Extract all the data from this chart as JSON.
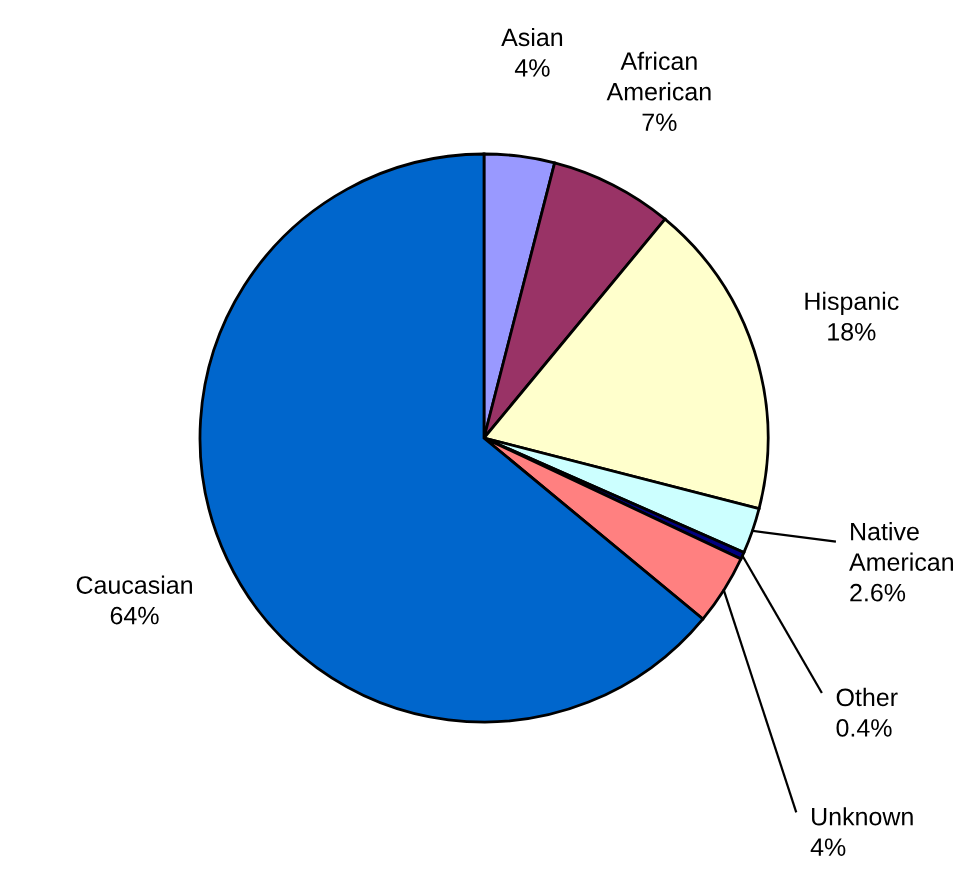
{
  "chart_data": {
    "type": "pie",
    "categories": [
      "Asian",
      "African American",
      "Hispanic",
      "Native American",
      "Other",
      "Unknown",
      "Caucasian"
    ],
    "values": [
      4,
      7,
      18,
      2.6,
      0.4,
      4,
      64
    ],
    "value_labels": [
      "4%",
      "7%",
      "18%",
      "2.6%",
      "0.4%",
      "4%",
      "64%"
    ],
    "colors": [
      "#9999ff",
      "#993366",
      "#ffffcc",
      "#ccffff",
      "#000080",
      "#ff8080",
      "#0066cc"
    ],
    "data_labels": true
  }
}
